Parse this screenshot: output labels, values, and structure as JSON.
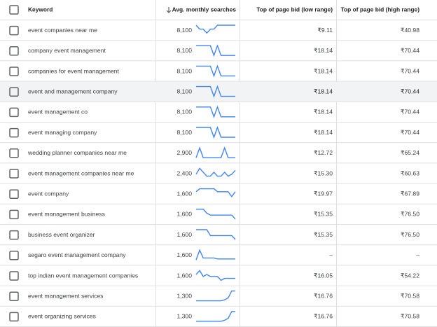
{
  "table": {
    "headers": [
      "Keyword",
      "Avg. monthly searches",
      "Top of page bid (low range)",
      "Top of page bid (high range)"
    ],
    "rows": [
      {
        "keyword": "event companies near me",
        "searches": "8,100",
        "low": "₹9.11",
        "high": "₹40.98",
        "trend": [
          10,
          6,
          6,
          2,
          6,
          6,
          10,
          10,
          10,
          10,
          10,
          10
        ]
      },
      {
        "keyword": "company event management",
        "searches": "8,100",
        "low": "₹18.14",
        "high": "₹70.44",
        "trend": [
          10,
          10,
          10,
          10,
          10,
          0,
          10,
          0,
          0,
          0,
          0,
          0
        ]
      },
      {
        "keyword": "companies for event management",
        "searches": "8,100",
        "low": "₹18.14",
        "high": "₹70.44",
        "trend": [
          10,
          10,
          10,
          10,
          10,
          0,
          10,
          0,
          0,
          0,
          0,
          0
        ]
      },
      {
        "keyword": "event and management company",
        "searches": "8,100",
        "low": "₹18.14",
        "high": "₹70.44",
        "trend": [
          10,
          10,
          10,
          10,
          10,
          0,
          10,
          0,
          0,
          0,
          0,
          0
        ]
      },
      {
        "keyword": "event management co",
        "searches": "8,100",
        "low": "₹18.14",
        "high": "₹70.44",
        "trend": [
          10,
          10,
          10,
          10,
          10,
          0,
          10,
          0,
          0,
          0,
          0,
          0
        ]
      },
      {
        "keyword": "event managing company",
        "searches": "8,100",
        "low": "₹18.14",
        "high": "₹70.44",
        "trend": [
          10,
          10,
          10,
          10,
          10,
          0,
          10,
          0,
          0,
          0,
          0,
          0
        ]
      },
      {
        "keyword": "wedding planner companies near me",
        "searches": "2,900",
        "low": "₹12.72",
        "high": "₹65.24",
        "trend": [
          0,
          10,
          0,
          0,
          0,
          0,
          0,
          0,
          10,
          0,
          0,
          0
        ]
      },
      {
        "keyword": "event management companies near me",
        "searches": "2,400",
        "low": "₹15.30",
        "high": "₹60.63",
        "trend": [
          4,
          10,
          6,
          2,
          2,
          6,
          2,
          2,
          6,
          2,
          4,
          8
        ]
      },
      {
        "keyword": "event company",
        "searches": "1,600",
        "low": "₹19.97",
        "high": "₹67.89",
        "trend": [
          7,
          10,
          10,
          10,
          10,
          10,
          7,
          7,
          7,
          7,
          2,
          7
        ]
      },
      {
        "keyword": "event management business",
        "searches": "1,600",
        "low": "₹15.35",
        "high": "₹76.50",
        "trend": [
          10,
          10,
          10,
          6,
          4,
          4,
          4,
          4,
          4,
          4,
          4,
          0
        ]
      },
      {
        "keyword": "business event organizer",
        "searches": "1,600",
        "low": "₹15.35",
        "high": "₹76.50",
        "trend": [
          10,
          10,
          10,
          10,
          4,
          4,
          4,
          4,
          4,
          4,
          4,
          0
        ]
      },
      {
        "keyword": "segaro event management company",
        "searches": "1,600",
        "low": "–",
        "high": "–",
        "trend": [
          0,
          10,
          2,
          2,
          2,
          2,
          1,
          1,
          1,
          1,
          1,
          1
        ]
      },
      {
        "keyword": "top indian event management companies",
        "searches": "1,600",
        "low": "₹16.05",
        "high": "₹54.22",
        "trend": [
          6,
          10,
          4,
          6,
          4,
          4,
          4,
          0,
          2,
          2,
          2,
          2
        ]
      },
      {
        "keyword": "event management services",
        "searches": "1,300",
        "low": "₹16.76",
        "high": "₹70.58",
        "trend": [
          0,
          0,
          0,
          0,
          0,
          0,
          0,
          0,
          1,
          3,
          10,
          10
        ]
      },
      {
        "keyword": "event organizing services",
        "searches": "1,300",
        "low": "₹16.76",
        "high": "₹70.58",
        "trend": [
          0,
          0,
          0,
          0,
          0,
          0,
          0,
          0,
          1,
          3,
          10,
          10
        ]
      }
    ]
  }
}
